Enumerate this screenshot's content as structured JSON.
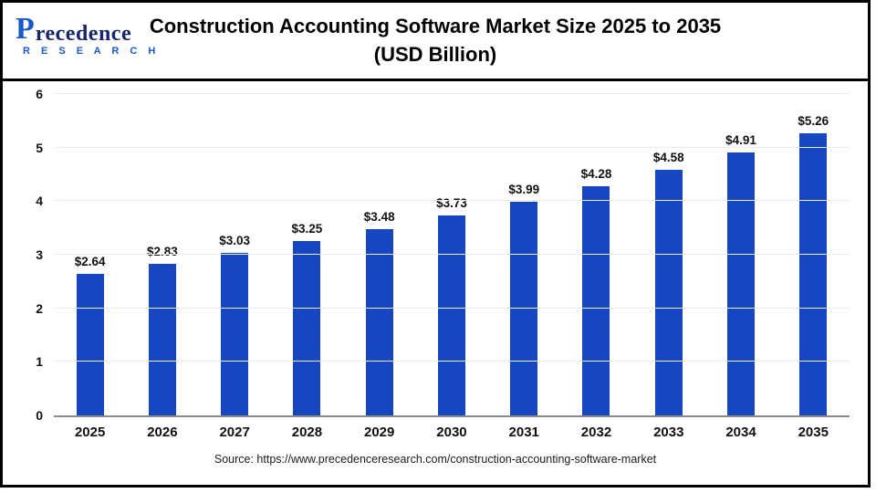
{
  "header": {
    "logo": {
      "p": "P",
      "word": "recedence",
      "sub": "R E S E A R C H"
    },
    "title_line1": "Construction Accounting Software Market Size 2025 to 2035",
    "title_line2": "(USD Billion)"
  },
  "chart_data": {
    "type": "bar",
    "title": "Construction Accounting Software Market Size 2025 to 2035 (USD Billion)",
    "categories": [
      "2025",
      "2026",
      "2027",
      "2028",
      "2029",
      "2030",
      "2031",
      "2032",
      "2033",
      "2034",
      "2035"
    ],
    "values": [
      2.64,
      2.83,
      3.03,
      3.25,
      3.48,
      3.73,
      3.99,
      4.28,
      4.58,
      4.91,
      5.26
    ],
    "value_labels": [
      "$2.64",
      "$2.83",
      "$3.03",
      "$3.25",
      "$3.48",
      "$3.73",
      "$3.99",
      "$4.28",
      "$4.58",
      "$4.91",
      "$5.26"
    ],
    "xlabel": "",
    "ylabel": "",
    "ylim": [
      0,
      6
    ],
    "yticks": [
      0,
      1,
      2,
      3,
      4,
      5,
      6
    ],
    "grid": true,
    "legend": false,
    "bar_color": "#1646c0"
  },
  "footer": {
    "source": "Source: https://www.precedenceresearch.com/construction-accounting-software-market"
  }
}
